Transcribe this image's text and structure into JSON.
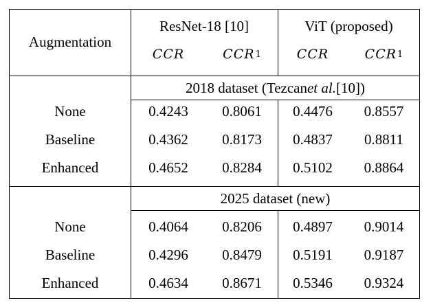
{
  "table": {
    "header": {
      "augmentation": "Augmentation",
      "group1": "ResNet-18 [10]",
      "group2": "ViT (proposed)",
      "metric_ccr": "CCR",
      "metric_ccr1_base": "CCR",
      "metric_ccr1_sub": "1"
    },
    "sections": [
      {
        "title_pre": "2018 dataset (Tezcan ",
        "title_em": "et al.",
        "title_post": " [10])",
        "rows": [
          {
            "label": "None",
            "values": [
              "0.4243",
              "0.8061",
              "0.4476",
              "0.8557"
            ]
          },
          {
            "label": "Baseline",
            "values": [
              "0.4362",
              "0.8173",
              "0.4837",
              "0.8811"
            ]
          },
          {
            "label": "Enhanced",
            "values": [
              "0.4652",
              "0.8284",
              "0.5102",
              "0.8864"
            ]
          }
        ]
      },
      {
        "title_pre": "2025 dataset (new)",
        "title_em": "",
        "title_post": "",
        "rows": [
          {
            "label": "None",
            "values": [
              "0.4064",
              "0.8206",
              "0.4897",
              "0.9014"
            ]
          },
          {
            "label": "Baseline",
            "values": [
              "0.4296",
              "0.8479",
              "0.5191",
              "0.9187"
            ]
          },
          {
            "label": "Enhanced",
            "values": [
              "0.4634",
              "0.8671",
              "0.5346",
              "0.9324"
            ]
          }
        ]
      }
    ]
  }
}
